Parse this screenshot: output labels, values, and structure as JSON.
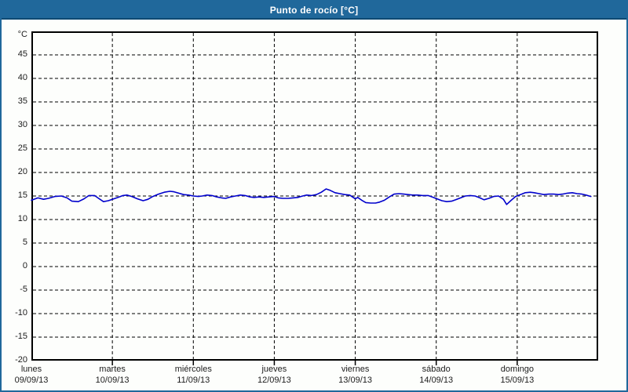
{
  "window": {
    "title": "Punto de rocío [°C]"
  },
  "colors": {
    "titlebar_bg": "#20689B",
    "titlebar_border_bottom": "#0E4A73",
    "page_border": "#20689B",
    "background": "#FDFEFC",
    "plot_border": "#000000",
    "grid": "#000000",
    "label_text": "#1c1c1c",
    "series_line": "#0000CC"
  },
  "chart_data": {
    "type": "line",
    "title": "Punto de rocío [°C]",
    "unit_label": "°C",
    "ylim": [
      -20,
      50
    ],
    "yticks": [
      45,
      40,
      35,
      30,
      25,
      20,
      15,
      10,
      5,
      0,
      -5,
      -10,
      -15,
      -20
    ],
    "grid": true,
    "legend": "none",
    "x_days": [
      {
        "name": "lunes",
        "date": "09/09/13"
      },
      {
        "name": "martes",
        "date": "10/09/13"
      },
      {
        "name": "miércoles",
        "date": "11/09/13"
      },
      {
        "name": "jueves",
        "date": "12/09/13"
      },
      {
        "name": "viernes",
        "date": "13/09/13"
      },
      {
        "name": "sábado",
        "date": "14/09/13"
      },
      {
        "name": "domingo",
        "date": "15/09/13"
      }
    ],
    "series": [
      {
        "name": "Punto de rocío",
        "color": "#0000CC",
        "points": [
          [
            0.0,
            14.1
          ],
          [
            0.08,
            14.6
          ],
          [
            0.15,
            14.3
          ],
          [
            0.21,
            14.5
          ],
          [
            0.29,
            14.9
          ],
          [
            0.37,
            15.0
          ],
          [
            0.44,
            14.6
          ],
          [
            0.5,
            13.9
          ],
          [
            0.58,
            13.8
          ],
          [
            0.65,
            14.4
          ],
          [
            0.71,
            15.1
          ],
          [
            0.78,
            15.1
          ],
          [
            0.83,
            14.5
          ],
          [
            0.89,
            13.8
          ],
          [
            0.95,
            14.0
          ],
          [
            1.0,
            14.3
          ],
          [
            1.07,
            14.7
          ],
          [
            1.13,
            15.1
          ],
          [
            1.18,
            15.2
          ],
          [
            1.24,
            14.9
          ],
          [
            1.31,
            14.4
          ],
          [
            1.38,
            14.0
          ],
          [
            1.44,
            14.3
          ],
          [
            1.5,
            14.9
          ],
          [
            1.57,
            15.4
          ],
          [
            1.64,
            15.8
          ],
          [
            1.71,
            16.0
          ],
          [
            1.76,
            15.9
          ],
          [
            1.82,
            15.6
          ],
          [
            1.88,
            15.3
          ],
          [
            1.94,
            15.2
          ],
          [
            2.0,
            15.0
          ],
          [
            2.06,
            14.9
          ],
          [
            2.11,
            15.0
          ],
          [
            2.17,
            15.2
          ],
          [
            2.23,
            15.1
          ],
          [
            2.29,
            14.8
          ],
          [
            2.35,
            14.6
          ],
          [
            2.4,
            14.5
          ],
          [
            2.46,
            14.8
          ],
          [
            2.52,
            15.0
          ],
          [
            2.58,
            15.2
          ],
          [
            2.64,
            15.1
          ],
          [
            2.7,
            14.8
          ],
          [
            2.75,
            14.7
          ],
          [
            2.81,
            14.8
          ],
          [
            2.87,
            14.7
          ],
          [
            2.93,
            14.8
          ],
          [
            3.0,
            14.9
          ],
          [
            3.05,
            14.6
          ],
          [
            3.11,
            14.5
          ],
          [
            3.17,
            14.5
          ],
          [
            3.23,
            14.6
          ],
          [
            3.29,
            14.7
          ],
          [
            3.35,
            15.0
          ],
          [
            3.4,
            15.2
          ],
          [
            3.46,
            15.1
          ],
          [
            3.52,
            15.3
          ],
          [
            3.58,
            15.8
          ],
          [
            3.64,
            16.5
          ],
          [
            3.69,
            16.2
          ],
          [
            3.75,
            15.7
          ],
          [
            3.81,
            15.5
          ],
          [
            3.87,
            15.3
          ],
          [
            3.93,
            15.2
          ],
          [
            4.0,
            14.4
          ],
          [
            4.03,
            14.7
          ],
          [
            4.08,
            14.1
          ],
          [
            4.13,
            13.6
          ],
          [
            4.19,
            13.5
          ],
          [
            4.25,
            13.5
          ],
          [
            4.3,
            13.7
          ],
          [
            4.36,
            14.1
          ],
          [
            4.42,
            14.8
          ],
          [
            4.48,
            15.4
          ],
          [
            4.54,
            15.5
          ],
          [
            4.6,
            15.4
          ],
          [
            4.65,
            15.3
          ],
          [
            4.71,
            15.2
          ],
          [
            4.77,
            15.2
          ],
          [
            4.83,
            15.1
          ],
          [
            4.9,
            15.1
          ],
          [
            4.95,
            14.8
          ],
          [
            5.01,
            14.4
          ],
          [
            5.07,
            14.0
          ],
          [
            5.13,
            13.8
          ],
          [
            5.19,
            13.9
          ],
          [
            5.24,
            14.2
          ],
          [
            5.3,
            14.6
          ],
          [
            5.36,
            15.0
          ],
          [
            5.42,
            15.1
          ],
          [
            5.48,
            15.0
          ],
          [
            5.54,
            14.6
          ],
          [
            5.59,
            14.2
          ],
          [
            5.65,
            14.5
          ],
          [
            5.71,
            14.9
          ],
          [
            5.77,
            15.0
          ],
          [
            5.83,
            14.3
          ],
          [
            5.87,
            13.2
          ],
          [
            5.92,
            14.0
          ],
          [
            5.98,
            14.9
          ],
          [
            6.04,
            15.3
          ],
          [
            6.1,
            15.7
          ],
          [
            6.16,
            15.8
          ],
          [
            6.21,
            15.7
          ],
          [
            6.27,
            15.5
          ],
          [
            6.33,
            15.3
          ],
          [
            6.39,
            15.4
          ],
          [
            6.45,
            15.4
          ],
          [
            6.51,
            15.3
          ],
          [
            6.56,
            15.4
          ],
          [
            6.62,
            15.6
          ],
          [
            6.68,
            15.7
          ],
          [
            6.74,
            15.5
          ],
          [
            6.8,
            15.4
          ],
          [
            6.85,
            15.2
          ],
          [
            6.91,
            14.9
          ]
        ]
      }
    ]
  }
}
